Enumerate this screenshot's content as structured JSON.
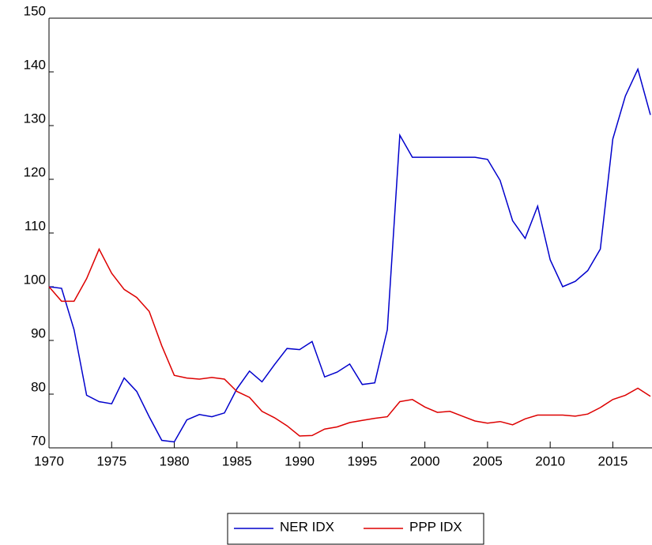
{
  "chart_data": {
    "type": "line",
    "x": [
      1970,
      1971,
      1972,
      1973,
      1974,
      1975,
      1976,
      1977,
      1978,
      1979,
      1980,
      1981,
      1982,
      1983,
      1984,
      1985,
      1986,
      1987,
      1988,
      1989,
      1990,
      1991,
      1992,
      1993,
      1994,
      1995,
      1996,
      1997,
      1998,
      1999,
      2000,
      2001,
      2002,
      2003,
      2004,
      2005,
      2006,
      2007,
      2008,
      2009,
      2010,
      2011,
      2012,
      2013,
      2014,
      2015,
      2016,
      2017,
      2018
    ],
    "series": [
      {
        "name": "NER IDX",
        "color": "#0000cc",
        "values": [
          100,
          99.7,
          92,
          79.8,
          78.6,
          78.2,
          83,
          80.5,
          75.8,
          71.4,
          71.1,
          75.2,
          76.2,
          75.8,
          76.5,
          81,
          84.3,
          82.3,
          85.5,
          88.5,
          88.3,
          89.8,
          83.2,
          84.1,
          85.6,
          81.8,
          82.1,
          92,
          128.2,
          124.1,
          124.1,
          124.1,
          124.1,
          124.1,
          124.1,
          123.7,
          119.8,
          112.3,
          109,
          115,
          105,
          100,
          101,
          103,
          107,
          127.5,
          135.5,
          140.5,
          132
        ]
      },
      {
        "name": "PPP IDX",
        "color": "#dd0000",
        "values": [
          100,
          97.3,
          97.3,
          101.5,
          107,
          102.5,
          99.5,
          98,
          95.4,
          89,
          83.5,
          83,
          82.8,
          83.1,
          82.8,
          80.5,
          79.4,
          76.8,
          75.6,
          74.1,
          72.2,
          72.3,
          73.5,
          73.9,
          74.7,
          75.1,
          75.5,
          75.8,
          78.6,
          79,
          77.6,
          76.6,
          76.8,
          75.9,
          75,
          74.6,
          74.9,
          74.3,
          75.4,
          76.1,
          76.1,
          76.1,
          75.9,
          76.3,
          77.5,
          79,
          79.8,
          81.1,
          79.6
        ]
      }
    ],
    "xlim": [
      1970,
      2018
    ],
    "xticks": [
      1970,
      1975,
      1980,
      1985,
      1990,
      1995,
      2000,
      2005,
      2010,
      2015
    ],
    "ylim": [
      70,
      150
    ],
    "yticks": [
      70,
      80,
      90,
      100,
      110,
      120,
      130,
      140,
      150
    ],
    "legend": "bottom"
  }
}
